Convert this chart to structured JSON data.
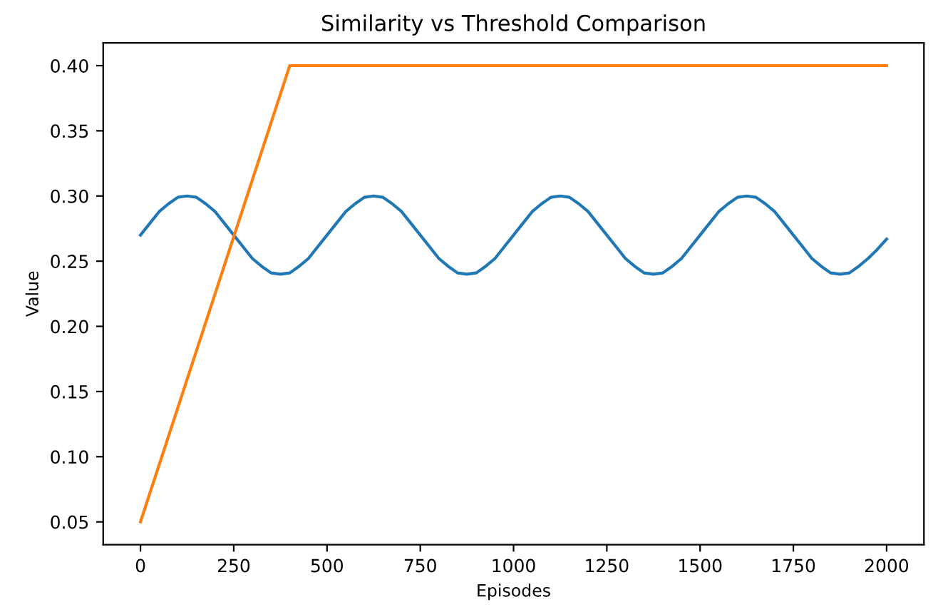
{
  "chart_data": {
    "type": "line",
    "title": "Similarity vs Threshold Comparison",
    "xlabel": "Episodes",
    "ylabel": "Value",
    "x": [
      0,
      25,
      50,
      75,
      100,
      125,
      150,
      175,
      200,
      225,
      250,
      275,
      300,
      325,
      350,
      375,
      400,
      425,
      450,
      475,
      500,
      525,
      550,
      575,
      600,
      625,
      650,
      675,
      700,
      725,
      750,
      775,
      800,
      825,
      850,
      875,
      900,
      925,
      950,
      975,
      1000,
      1025,
      1050,
      1075,
      1100,
      1125,
      1150,
      1175,
      1200,
      1225,
      1250,
      1275,
      1300,
      1325,
      1350,
      1375,
      1400,
      1425,
      1450,
      1475,
      1500,
      1525,
      1550,
      1575,
      1600,
      1625,
      1650,
      1675,
      1700,
      1725,
      1750,
      1775,
      1800,
      1825,
      1850,
      1875,
      1900,
      1925,
      1950,
      1975,
      2000
    ],
    "series": [
      {
        "color": "#1f77b4",
        "values": [
          0.27,
          0.279,
          0.288,
          0.294,
          0.299,
          0.3,
          0.299,
          0.294,
          0.288,
          0.279,
          0.27,
          0.261,
          0.252,
          0.246,
          0.241,
          0.24,
          0.241,
          0.246,
          0.252,
          0.261,
          0.27,
          0.279,
          0.288,
          0.294,
          0.299,
          0.3,
          0.299,
          0.294,
          0.288,
          0.279,
          0.27,
          0.261,
          0.252,
          0.246,
          0.241,
          0.24,
          0.241,
          0.246,
          0.252,
          0.261,
          0.27,
          0.279,
          0.288,
          0.294,
          0.299,
          0.3,
          0.299,
          0.294,
          0.288,
          0.279,
          0.27,
          0.261,
          0.252,
          0.246,
          0.241,
          0.24,
          0.241,
          0.246,
          0.252,
          0.261,
          0.27,
          0.279,
          0.288,
          0.294,
          0.299,
          0.3,
          0.299,
          0.294,
          0.288,
          0.279,
          0.27,
          0.261,
          0.252,
          0.246,
          0.241,
          0.24,
          0.241,
          0.246,
          0.252,
          0.259,
          0.267
        ]
      },
      {
        "color": "#ff7f0e",
        "x": [
          0,
          400,
          2000
        ],
        "values": [
          0.05,
          0.4,
          0.4
        ]
      }
    ],
    "xlim": [
      -100,
      2100
    ],
    "ylim": [
      0.0325,
      0.4175
    ],
    "xticks": [
      0,
      250,
      500,
      750,
      1000,
      1250,
      1500,
      1750,
      2000
    ],
    "yticks": [
      {
        "value": 0.05,
        "label": "0.05"
      },
      {
        "value": 0.1,
        "label": "0.10"
      },
      {
        "value": 0.15,
        "label": "0.15"
      },
      {
        "value": 0.2,
        "label": "0.20"
      },
      {
        "value": 0.25,
        "label": "0.25"
      },
      {
        "value": 0.3,
        "label": "0.30"
      },
      {
        "value": 0.35,
        "label": "0.35"
      },
      {
        "value": 0.4,
        "label": "0.40"
      }
    ],
    "grid": false,
    "marker": "none",
    "line_style": "solid"
  }
}
